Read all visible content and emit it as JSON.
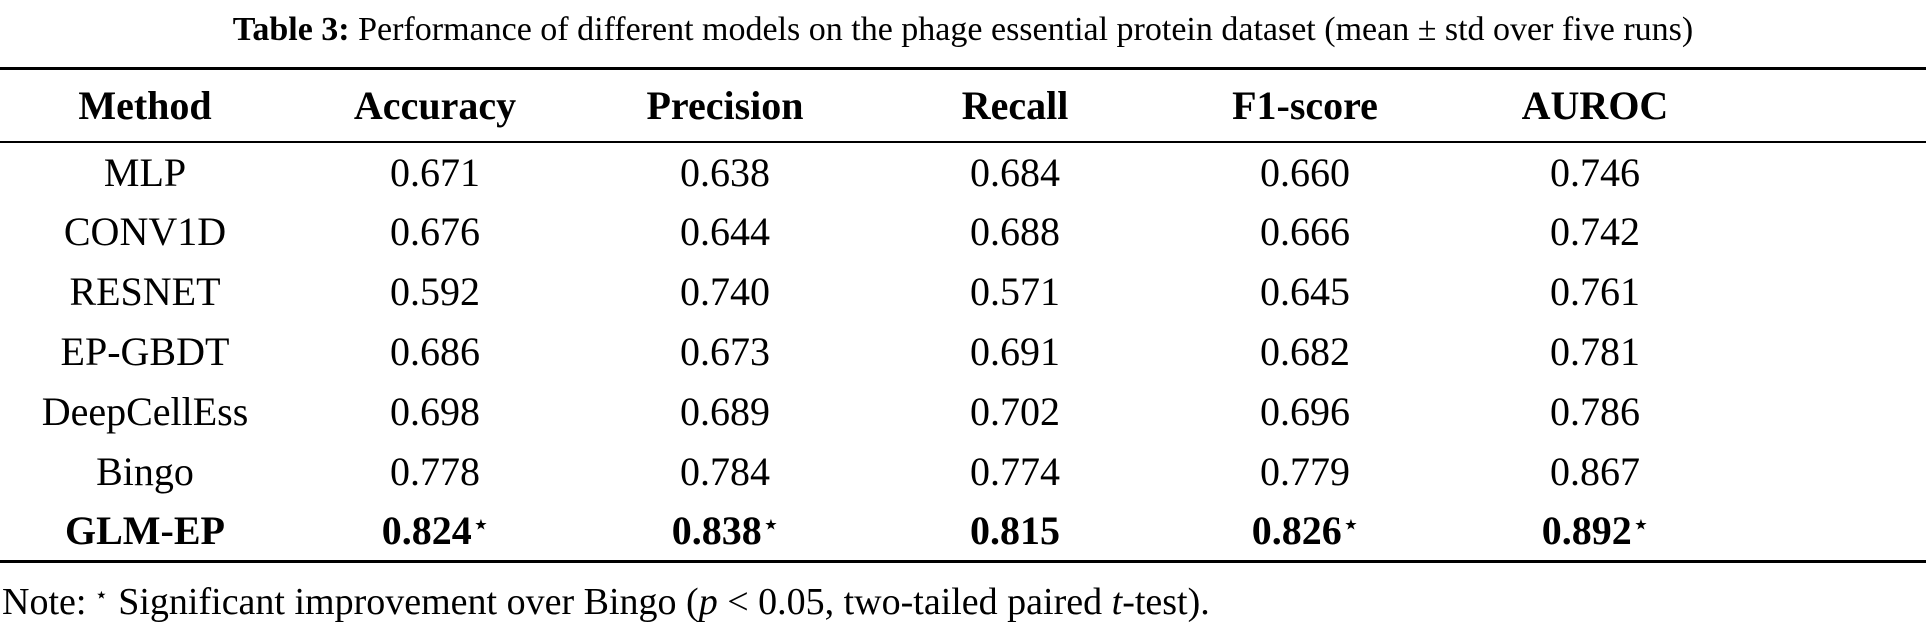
{
  "title": {
    "label": "Table 3:",
    "text": "Performance of different models on the phage essential protein dataset (mean ± std over five runs)"
  },
  "table": {
    "columns": [
      "Method",
      "Accuracy",
      "Precision",
      "Recall",
      "F1-score",
      "AUROC"
    ],
    "star_symbol": "⋆",
    "rows": [
      {
        "method": "MLP",
        "bold": false,
        "values": [
          {
            "v": "0.671"
          },
          {
            "v": "0.638"
          },
          {
            "v": "0.684"
          },
          {
            "v": "0.660"
          },
          {
            "v": "0.746"
          }
        ]
      },
      {
        "method": "CONV1D",
        "bold": false,
        "values": [
          {
            "v": "0.676"
          },
          {
            "v": "0.644"
          },
          {
            "v": "0.688"
          },
          {
            "v": "0.666"
          },
          {
            "v": "0.742"
          }
        ]
      },
      {
        "method": "RESNET",
        "bold": false,
        "values": [
          {
            "v": "0.592"
          },
          {
            "v": "0.740"
          },
          {
            "v": "0.571"
          },
          {
            "v": "0.645"
          },
          {
            "v": "0.761"
          }
        ]
      },
      {
        "method": "EP-GBDT",
        "bold": false,
        "values": [
          {
            "v": "0.686"
          },
          {
            "v": "0.673"
          },
          {
            "v": "0.691"
          },
          {
            "v": "0.682"
          },
          {
            "v": "0.781"
          }
        ]
      },
      {
        "method": "DeepCellEss",
        "bold": false,
        "values": [
          {
            "v": "0.698"
          },
          {
            "v": "0.689"
          },
          {
            "v": "0.702"
          },
          {
            "v": "0.696"
          },
          {
            "v": "0.786"
          }
        ]
      },
      {
        "method": "Bingo",
        "bold": false,
        "values": [
          {
            "v": "0.778"
          },
          {
            "v": "0.784"
          },
          {
            "v": "0.774"
          },
          {
            "v": "0.779"
          },
          {
            "v": "0.867"
          }
        ]
      },
      {
        "method": "GLM-EP",
        "bold": true,
        "values": [
          {
            "v": "0.824",
            "star": true
          },
          {
            "v": "0.838",
            "star": true
          },
          {
            "v": "0.815"
          },
          {
            "v": "0.826",
            "star": true
          },
          {
            "v": "0.892",
            "star": true
          }
        ]
      }
    ]
  },
  "note": {
    "label": "Note:",
    "star": "⋆",
    "segments": [
      {
        "text": "Significant improvement over Bingo (",
        "italic": false
      },
      {
        "text": "p",
        "italic": true
      },
      {
        "text": " < 0.05, two-tailed paired ",
        "italic": false
      },
      {
        "text": "t",
        "italic": true
      },
      {
        "text": "-test).",
        "italic": false
      }
    ]
  },
  "colors": {
    "text": "#000000",
    "background": "#ffffff",
    "rule": "#000000"
  }
}
